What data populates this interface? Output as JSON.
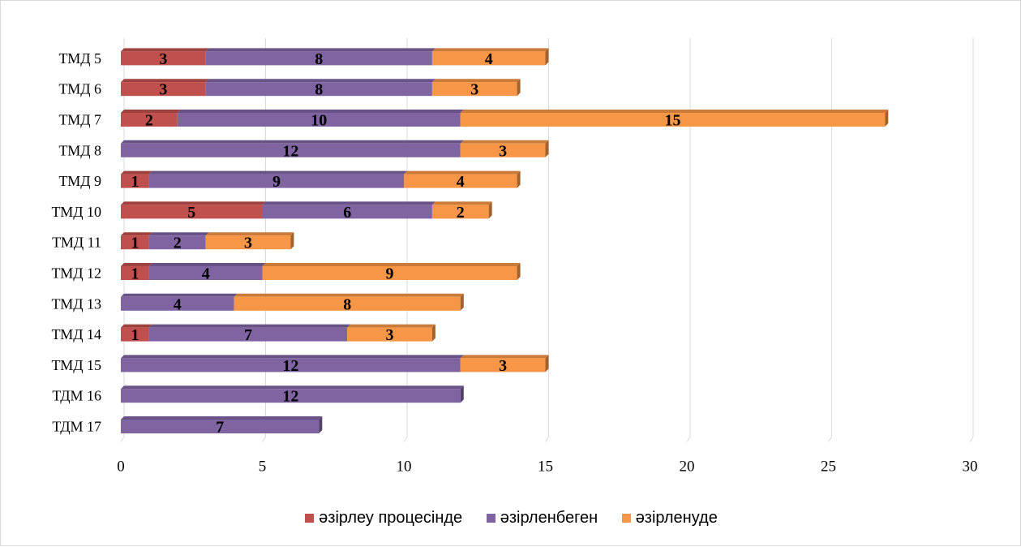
{
  "chart_data": {
    "type": "bar",
    "orientation": "horizontal",
    "stacked": true,
    "categories": [
      "ТМД 5",
      "ТМД 6",
      "ТМД 7",
      "ТМД 8",
      "ТМД 9",
      "ТМД 10",
      "ТМД 11",
      "ТМД 12",
      "ТМД 13",
      "ТМД 14",
      "ТМД 15",
      "ТДМ 16",
      "ТДМ 17"
    ],
    "series": [
      {
        "name": "әзірлеу процесінде",
        "color": "#c0504d",
        "values": [
          3,
          3,
          2,
          0,
          1,
          5,
          1,
          1,
          0,
          1,
          0,
          0,
          0
        ]
      },
      {
        "name": "әзірленбеген",
        "color": "#8064a2",
        "values": [
          8,
          8,
          10,
          12,
          9,
          6,
          2,
          4,
          4,
          7,
          12,
          12,
          7
        ]
      },
      {
        "name": "әзірленуде",
        "color": "#f79646",
        "values": [
          4,
          3,
          15,
          3,
          4,
          2,
          3,
          9,
          8,
          3,
          3,
          0,
          0
        ]
      }
    ],
    "xlim": [
      0,
      30
    ],
    "xticks": [
      0,
      5,
      10,
      15,
      20,
      25,
      30
    ],
    "grid": true,
    "legend_position": "bottom",
    "title": "",
    "xlabel": "",
    "ylabel": ""
  }
}
